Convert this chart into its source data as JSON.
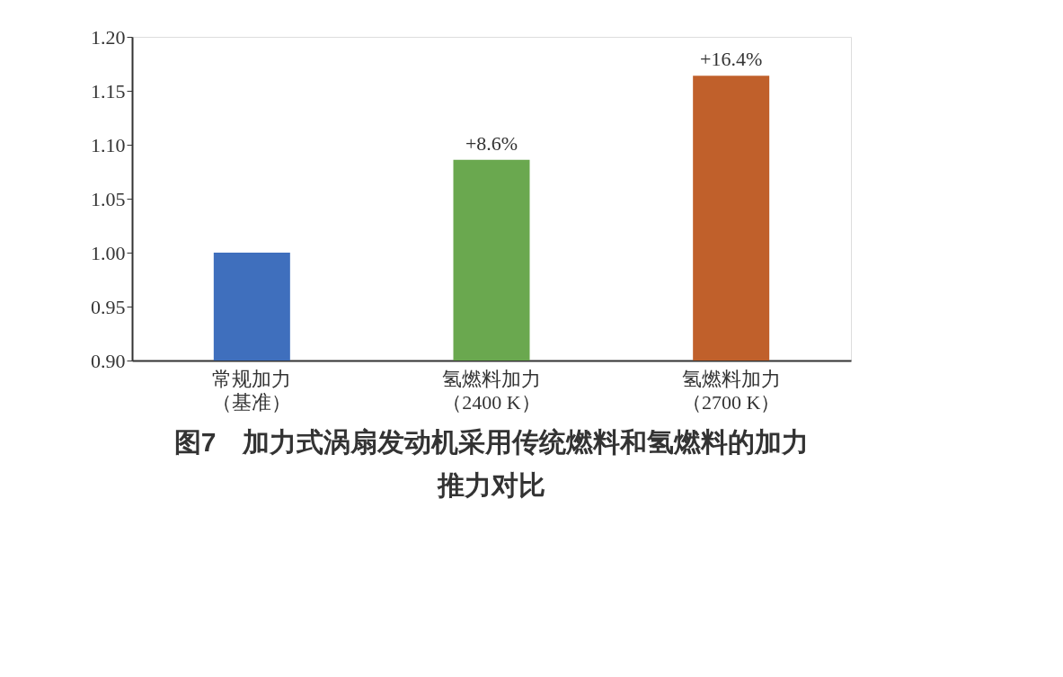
{
  "chart_data": {
    "type": "bar",
    "title": "图7　加力式涡扇发动机采用传统燃料和氢燃料的加力推力对比",
    "categories": [
      "常规加力（基准）",
      "氢燃料加力（2400 K）",
      "氢燃料加力（2700 K）"
    ],
    "values": [
      1.0,
      1.086,
      1.164
    ],
    "colors": [
      "#3f6fbd",
      "#6aa84f",
      "#c0602b"
    ],
    "annotations": [
      {
        "text": "+8.6%",
        "x": "氢燃料加力（2400 K）",
        "y": 1.086
      },
      {
        "text": "+16.4%",
        "x": "氢燃料加力（2700 K）",
        "y": 1.164
      }
    ],
    "ylim": [
      0.9,
      1.2
    ],
    "yticks": [
      {
        "value": 0.9,
        "label": "0.90"
      },
      {
        "value": 0.95,
        "label": "0.95"
      },
      {
        "value": 1.0,
        "label": "1.00"
      },
      {
        "value": 1.05,
        "label": "1.05"
      },
      {
        "value": 1.1,
        "label": "1.10"
      },
      {
        "value": 1.15,
        "label": "1.15"
      },
      {
        "value": 1.2,
        "label": "1.20"
      }
    ],
    "grid": false
  }
}
